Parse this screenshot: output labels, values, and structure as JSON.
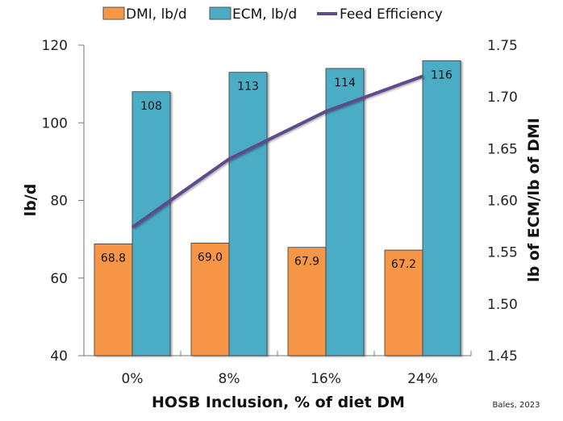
{
  "chart_data": {
    "type": "bar",
    "title": "",
    "categories": [
      "0%",
      "8%",
      "16%",
      "24%"
    ],
    "xlabel": "HOSB Inclusion, % of diet DM",
    "ylabel": "lb/d",
    "y2label": "lb of ECM/lb of DMI",
    "ylim": [
      40,
      120
    ],
    "y2lim": [
      1.45,
      1.75
    ],
    "yticks": [
      "40",
      "60",
      "80",
      "100",
      "120"
    ],
    "y2ticks": [
      "1.45",
      "1.50",
      "1.55",
      "1.60",
      "1.65",
      "1.70",
      "1.75"
    ],
    "grid": false,
    "legend_position": "top",
    "series": [
      {
        "name": "DMI, lb/d",
        "type": "bar",
        "axis": "left",
        "color": "#F79646",
        "values": [
          68.8,
          69.0,
          67.9,
          67.2
        ],
        "labels": [
          "68.8",
          "69.0",
          "67.9",
          "67.2"
        ]
      },
      {
        "name": "ECM, lb/d",
        "type": "bar",
        "axis": "left",
        "color": "#4BACC6",
        "values": [
          108,
          113,
          114,
          116
        ],
        "labels": [
          "108",
          "113",
          "114",
          "116"
        ]
      },
      {
        "name": "Feed Efficiency",
        "type": "line",
        "axis": "right",
        "color": "#5F4B8B",
        "values": [
          1.574,
          1.64,
          1.686,
          1.72
        ]
      }
    ],
    "source_note": "Bales, 2023"
  }
}
